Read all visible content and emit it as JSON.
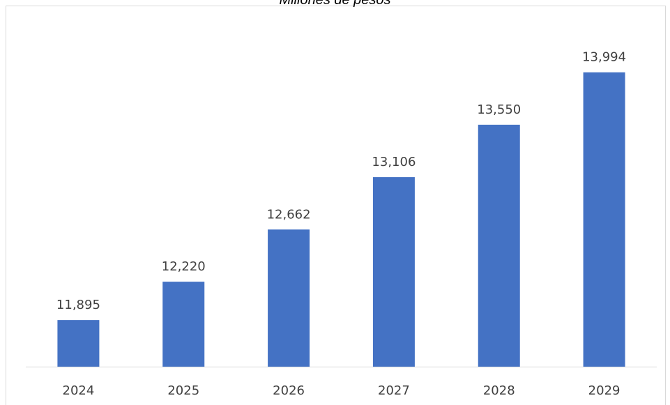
{
  "chart_data": {
    "type": "bar",
    "title": "",
    "subtitle": "Millones de pesos",
    "xlabel": "",
    "ylabel": "",
    "categories": [
      "2024",
      "2025",
      "2026",
      "2027",
      "2028",
      "2029"
    ],
    "values": [
      11895,
      12220,
      12662,
      13106,
      13550,
      13994
    ],
    "value_labels": [
      "11,895",
      "12,220",
      "12,662",
      "13,106",
      "13,550",
      "13,994"
    ],
    "ylim": [
      11500,
      14400
    ],
    "grid": false,
    "legend": "none",
    "bar_color": "#4472c4",
    "axis_color": "#d9d9d9",
    "label_color": "#404040"
  }
}
